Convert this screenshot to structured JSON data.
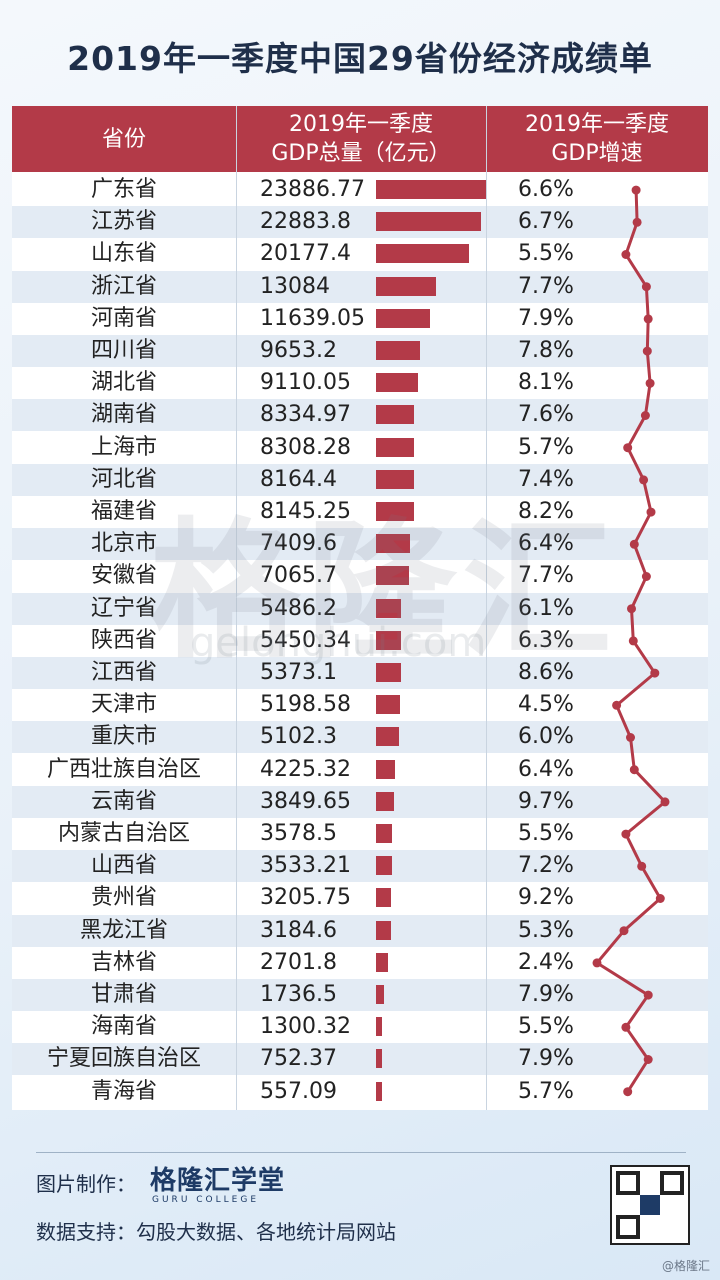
{
  "title": "2019年一季度中国29省份经济成绩单",
  "header": {
    "province": "省份",
    "gdp_line1": "2019年一季度",
    "gdp_line2": "GDP总量（亿元）",
    "rate_line1": "2019年一季度",
    "rate_line2": "GDP增速"
  },
  "chart_data": {
    "type": "table",
    "columns": [
      "省份",
      "2019年一季度GDP总量（亿元）",
      "2019年一季度GDP增速"
    ],
    "rows": [
      {
        "province": "广东省",
        "gdp": "23886.77",
        "rate": "6.6%"
      },
      {
        "province": "江苏省",
        "gdp": "22883.8",
        "rate": "6.7%"
      },
      {
        "province": "山东省",
        "gdp": "20177.4",
        "rate": "5.5%"
      },
      {
        "province": "浙江省",
        "gdp": "13084",
        "rate": "7.7%"
      },
      {
        "province": "河南省",
        "gdp": "11639.05",
        "rate": "7.9%"
      },
      {
        "province": "四川省",
        "gdp": "9653.2",
        "rate": "7.8%"
      },
      {
        "province": "湖北省",
        "gdp": "9110.05",
        "rate": "8.1%"
      },
      {
        "province": "湖南省",
        "gdp": "8334.97",
        "rate": "7.6%"
      },
      {
        "province": "上海市",
        "gdp": "8308.28",
        "rate": "5.7%"
      },
      {
        "province": "河北省",
        "gdp": "8164.4",
        "rate": "7.4%"
      },
      {
        "province": "福建省",
        "gdp": "8145.25",
        "rate": "8.2%"
      },
      {
        "province": "北京市",
        "gdp": "7409.6",
        "rate": "6.4%"
      },
      {
        "province": "安徽省",
        "gdp": "7065.7",
        "rate": "7.7%"
      },
      {
        "province": "辽宁省",
        "gdp": "5486.2",
        "rate": "6.1%"
      },
      {
        "province": "陕西省",
        "gdp": "5450.34",
        "rate": "6.3%"
      },
      {
        "province": "江西省",
        "gdp": "5373.1",
        "rate": "8.6%"
      },
      {
        "province": "天津市",
        "gdp": "5198.58",
        "rate": "4.5%"
      },
      {
        "province": "重庆市",
        "gdp": "5102.3",
        "rate": "6.0%"
      },
      {
        "province": "广西壮族自治区",
        "gdp": "4225.32",
        "rate": "6.4%"
      },
      {
        "province": "云南省",
        "gdp": "3849.65",
        "rate": "9.7%"
      },
      {
        "province": "内蒙古自治区",
        "gdp": "3578.5",
        "rate": "5.5%"
      },
      {
        "province": "山西省",
        "gdp": "3533.21",
        "rate": "7.2%"
      },
      {
        "province": "贵州省",
        "gdp": "3205.75",
        "rate": "9.2%"
      },
      {
        "province": "黑龙江省",
        "gdp": "3184.6",
        "rate": "5.3%"
      },
      {
        "province": "吉林省",
        "gdp": "2701.8",
        "rate": "2.4%"
      },
      {
        "province": "甘肃省",
        "gdp": "1736.5",
        "rate": "7.9%"
      },
      {
        "province": "海南省",
        "gdp": "1300.32",
        "rate": "5.5%"
      },
      {
        "province": "宁夏回族自治区",
        "gdp": "752.37",
        "rate": "7.9%"
      },
      {
        "province": "青海省",
        "gdp": "557.09",
        "rate": "5.7%"
      }
    ],
    "bar_series": "gdp",
    "line_series": "rate",
    "bar_max": 23886.77
  },
  "watermark": {
    "text": "格隆汇",
    "sub": "gelonghui.com"
  },
  "footer": {
    "credit_label": "图片制作：",
    "brand_name": "格隆汇学堂",
    "brand_sub": "GURU COLLEGE",
    "source": "数据支持：勾股大数据、各地统计局网站",
    "handle": "@格隆汇"
  },
  "colors": {
    "accent": "#b33a48",
    "even_row": "#e3ebf4",
    "title": "#1f2f4a"
  }
}
